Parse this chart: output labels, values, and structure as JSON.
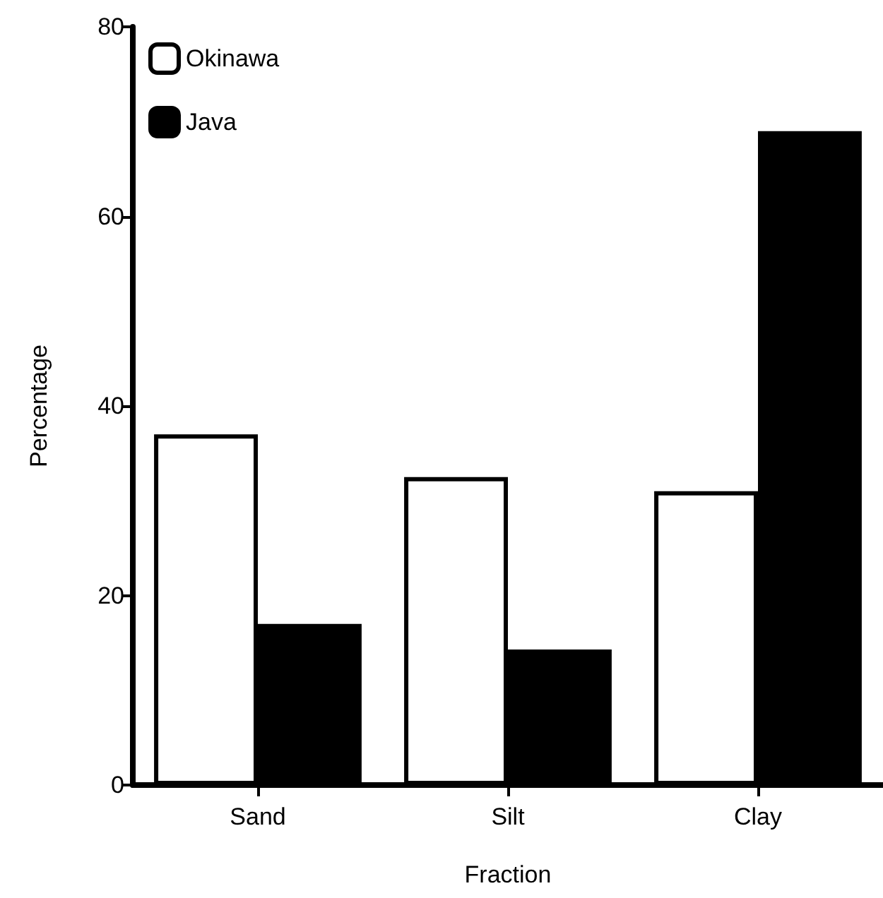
{
  "chart_data": {
    "type": "bar",
    "xlabel": "Fraction",
    "ylabel": "Percentage",
    "categories": [
      "Sand",
      "Silt",
      "Clay"
    ],
    "series": [
      {
        "name": "Okinawa",
        "color": "#ffffff",
        "values": [
          37,
          32.5,
          31
        ]
      },
      {
        "name": "Java",
        "color": "#000000",
        "values": [
          17,
          14.3,
          69
        ]
      }
    ],
    "ylim": [
      0,
      80
    ],
    "yticks": [
      0,
      20,
      40,
      60,
      80
    ],
    "grid": false,
    "legend": "top left"
  }
}
